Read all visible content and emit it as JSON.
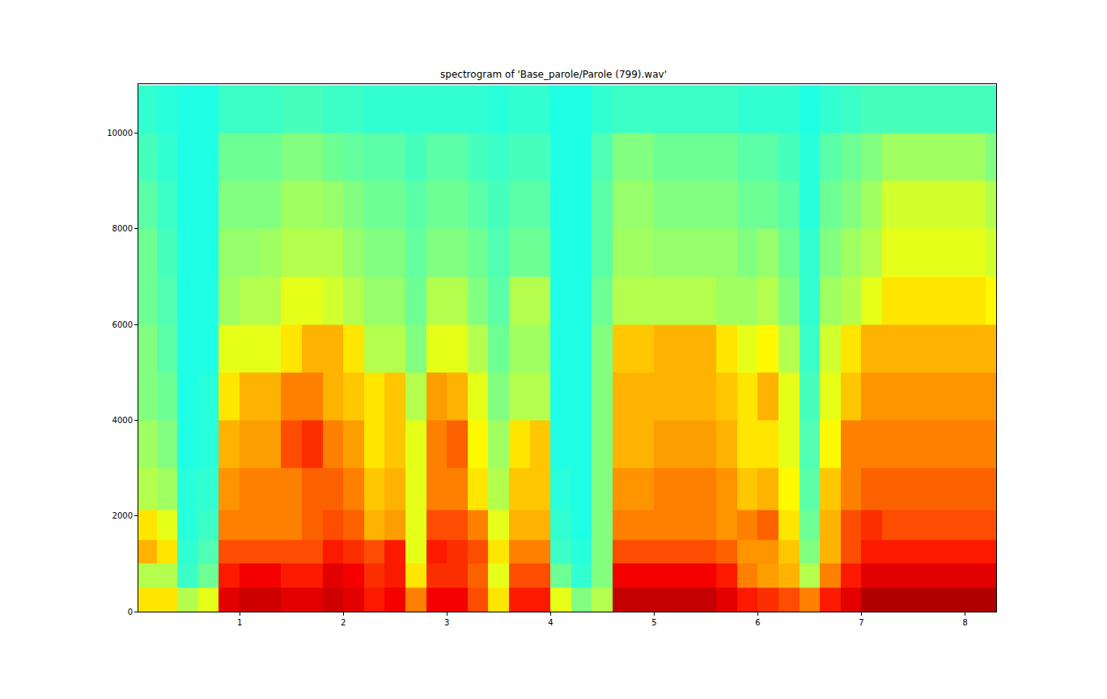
{
  "chart_data": {
    "type": "heatmap",
    "title": "spectrogram of 'Base_parole/Parole (799).wav'",
    "color": "jet",
    "grid": false,
    "xlim": [
      0.023,
      8.3
    ],
    "ylim": [
      0,
      11025
    ],
    "xticks": [
      1,
      2,
      3,
      4,
      5,
      6,
      7,
      8
    ],
    "yticks": [
      0,
      2000,
      4000,
      6000,
      8000,
      10000
    ],
    "zlim": [
      0,
      10
    ],
    "x": [
      0.1,
      0.3,
      0.5,
      0.7,
      0.9,
      1.1,
      1.3,
      1.5,
      1.7,
      1.9,
      2.1,
      2.3,
      2.5,
      2.7,
      2.9,
      3.1,
      3.3,
      3.5,
      3.7,
      3.9,
      4.1,
      4.3,
      4.5,
      4.7,
      4.9,
      5.1,
      5.3,
      5.5,
      5.7,
      5.9,
      6.1,
      6.3,
      6.5,
      6.7,
      6.9,
      7.1,
      7.3,
      7.5,
      7.7,
      7.9,
      8.1,
      8.3
    ],
    "y": [
      250,
      750,
      1250,
      1750,
      2500,
      3500,
      4500,
      5500,
      6500,
      7500,
      8500,
      9500,
      10500
    ],
    "z": [
      [
        6.5,
        5.5,
        7,
        6.5,
        5.5,
        5.3,
        5,
        5,
        4.8,
        4.8,
        4.6,
        4.4,
        4.2
      ],
      [
        6.5,
        5.5,
        6.5,
        6,
        5.3,
        5,
        4.8,
        4.6,
        4.5,
        4.4,
        4.3,
        4.2,
        4.1
      ],
      [
        5.5,
        4.3,
        4.2,
        4.1,
        4.1,
        4,
        4,
        4,
        4,
        4,
        4,
        4,
        4
      ],
      [
        6,
        4.8,
        4.5,
        4.3,
        4.2,
        4.1,
        4.1,
        4,
        4,
        4,
        4,
        4,
        4
      ],
      [
        9,
        8.5,
        8,
        7.5,
        7.3,
        7,
        6.5,
        6,
        5.3,
        5.2,
        5,
        4.8,
        4.3
      ],
      [
        9.2,
        8.8,
        8,
        7.5,
        7.5,
        7.2,
        7,
        6,
        5.5,
        5.2,
        5,
        4.8,
        4.3
      ],
      [
        9.2,
        8.8,
        8,
        7.5,
        7.5,
        7.2,
        7,
        6,
        5.5,
        5.3,
        5,
        4.8,
        4.3
      ],
      [
        9,
        8.5,
        8,
        7.5,
        7.5,
        8,
        7.5,
        6.5,
        6,
        5.5,
        5.3,
        5,
        4.4
      ],
      [
        9,
        8.5,
        8,
        7.8,
        7.8,
        8.3,
        7.5,
        7,
        6,
        5.5,
        5.3,
        5,
        4.4
      ],
      [
        9.2,
        9,
        8.5,
        8,
        7.8,
        7.5,
        7,
        7,
        5.8,
        5.5,
        5.2,
        4.8,
        4.3
      ],
      [
        9,
        8.8,
        8.3,
        7.8,
        7.5,
        7.2,
        6.8,
        6.5,
        5.5,
        5.2,
        5,
        4.7,
        4.3
      ],
      [
        8.5,
        8.3,
        8,
        7,
        6.8,
        6.5,
        6.5,
        5.5,
        5.2,
        5,
        4.8,
        4.6,
        4.2
      ],
      [
        8.8,
        8.5,
        8.5,
        7.2,
        7,
        6.8,
        6.8,
        5.5,
        5.2,
        5,
        4.8,
        4.6,
        4.2
      ],
      [
        7.5,
        6.5,
        6,
        6,
        6,
        6,
        5.5,
        5,
        4.8,
        4.7,
        4.6,
        4.4,
        4.2
      ],
      [
        8.8,
        8.3,
        8.5,
        8,
        7.5,
        7.5,
        7.2,
        6,
        5.5,
        5,
        4.8,
        4.6,
        4.2
      ],
      [
        8.8,
        8.3,
        8.3,
        8,
        7.5,
        7.8,
        7,
        6,
        5.5,
        5,
        4.8,
        4.6,
        4.2
      ],
      [
        8,
        7.8,
        8,
        7.5,
        6.5,
        6.3,
        6,
        5.5,
        5,
        4.8,
        4.6,
        4.4,
        4.2
      ],
      [
        6.5,
        6,
        6.5,
        6,
        5.5,
        5.3,
        5,
        4.8,
        4.6,
        4.5,
        4.4,
        4.3,
        4.1
      ],
      [
        8.5,
        8,
        7.5,
        7,
        6.8,
        6.5,
        5.5,
        5.3,
        5.5,
        4.8,
        4.6,
        4.4,
        4.2
      ],
      [
        8.5,
        8,
        7.5,
        7,
        6.8,
        6.8,
        5.5,
        5.3,
        5.5,
        4.8,
        4.6,
        4.4,
        4.2
      ],
      [
        6,
        4.8,
        4.3,
        4.2,
        4.1,
        4,
        4,
        4,
        4,
        4,
        4,
        4,
        4
      ],
      [
        5,
        4.2,
        4.1,
        4,
        4,
        4,
        4,
        4,
        4,
        4,
        4,
        4,
        4
      ],
      [
        5.5,
        5,
        5,
        5,
        5,
        5,
        5,
        5,
        4.8,
        4.6,
        4.6,
        4.5,
        4.2
      ],
      [
        9.3,
        8.8,
        8,
        7.5,
        7.3,
        7,
        7,
        6.8,
        5.5,
        5.3,
        5.2,
        5,
        4.3
      ],
      [
        9.3,
        8.8,
        8,
        7.5,
        7.3,
        7,
        7,
        6.8,
        5.5,
        5.3,
        5.2,
        5,
        4.3
      ],
      [
        9.3,
        8.8,
        8,
        7.5,
        7.5,
        7.2,
        7,
        7,
        5.5,
        5.2,
        5,
        4.8,
        4.3
      ],
      [
        9.3,
        8.8,
        8,
        7.5,
        7.5,
        7.2,
        7,
        7,
        5.5,
        5.2,
        5,
        4.8,
        4.3
      ],
      [
        9.3,
        8.8,
        8,
        7.5,
        7.5,
        7.2,
        7,
        7,
        5.5,
        5.2,
        5,
        4.8,
        4.3
      ],
      [
        9,
        8.5,
        7.8,
        7.3,
        7.3,
        7,
        6.8,
        6.5,
        5.3,
        5.2,
        5,
        4.8,
        4.3
      ],
      [
        8.5,
        7.5,
        7.3,
        7.5,
        6.8,
        6.5,
        6.5,
        6,
        5.3,
        5,
        4.8,
        4.6,
        4.2
      ],
      [
        8.3,
        7.2,
        7.3,
        7.8,
        7,
        6.5,
        7,
        6.3,
        5.5,
        5.2,
        4.8,
        4.6,
        4.2
      ],
      [
        8,
        7,
        6.8,
        6.5,
        6.3,
        6,
        6,
        5.5,
        5,
        4.8,
        4.6,
        4.4,
        4.2
      ],
      [
        7.5,
        5.5,
        5,
        4.8,
        4.6,
        4.5,
        4.4,
        4.3,
        4.2,
        4.2,
        4.1,
        4.1,
        4
      ],
      [
        8.5,
        7.5,
        7,
        7,
        6.8,
        6.3,
        6,
        5.8,
        5.3,
        5,
        4.8,
        4.6,
        4.2
      ],
      [
        9,
        8.5,
        8,
        8,
        7.5,
        7.5,
        6.8,
        6.5,
        5.5,
        5.3,
        5,
        4.8,
        4.3
      ],
      [
        9.5,
        9,
        8.5,
        8.3,
        7.8,
        7.5,
        7.3,
        7,
        6,
        5.5,
        5.3,
        5,
        4.4
      ],
      [
        9.5,
        9,
        8.5,
        8,
        7.8,
        7.5,
        7.3,
        7,
        6.5,
        6,
        5.8,
        5.3,
        4.4
      ],
      [
        9.5,
        9,
        8.5,
        8,
        7.8,
        7.5,
        7.3,
        7,
        6.5,
        6,
        5.8,
        5.3,
        4.4
      ],
      [
        9.5,
        9,
        8.5,
        8,
        7.8,
        7.5,
        7.3,
        7,
        6.5,
        6,
        5.8,
        5.3,
        4.4
      ],
      [
        9.5,
        9,
        8.5,
        8,
        7.8,
        7.5,
        7.3,
        7,
        6.5,
        6,
        5.8,
        5.3,
        4.4
      ],
      [
        9.5,
        9,
        8.5,
        8,
        7.8,
        7.5,
        7.3,
        7,
        6.5,
        6,
        5.8,
        5.3,
        4.4
      ],
      [
        9.5,
        9,
        8.5,
        8,
        7.8,
        7.5,
        7.3,
        7,
        6.3,
        5.8,
        5.5,
        5,
        4.4
      ]
    ]
  }
}
